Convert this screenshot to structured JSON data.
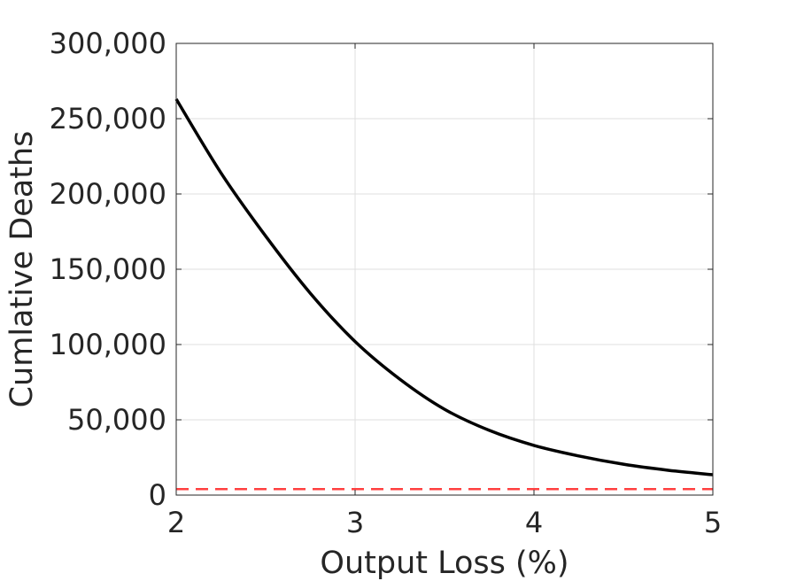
{
  "chart_data": {
    "type": "line",
    "title": "",
    "xlabel": "Output Loss (%)",
    "ylabel": "Cumlative Deaths",
    "xlim": [
      2,
      5
    ],
    "ylim": [
      0,
      300000
    ],
    "grid": true,
    "x_ticks": [
      2,
      3,
      4,
      5
    ],
    "x_tick_labels": [
      "2",
      "3",
      "4",
      "5"
    ],
    "y_ticks": [
      0,
      50000,
      100000,
      150000,
      200000,
      250000,
      300000
    ],
    "y_tick_labels": [
      "0",
      "50,000",
      "100,000",
      "150,000",
      "200,000",
      "250,000",
      "300,000"
    ],
    "series": [
      {
        "style": "solid",
        "color": "#000000",
        "x": [
          2.0,
          2.25,
          2.5,
          2.75,
          3.0,
          3.25,
          3.5,
          3.75,
          4.0,
          4.25,
          4.5,
          4.75,
          5.0
        ],
        "y": [
          263000,
          214000,
          172000,
          134000,
          102000,
          77000,
          57000,
          43000,
          33000,
          26000,
          20500,
          16500,
          13500
        ]
      },
      {
        "style": "dashed",
        "color": "#ff4040",
        "x": [
          2.0,
          5.0
        ],
        "y": [
          4000,
          4000
        ]
      }
    ],
    "legend": "none"
  }
}
